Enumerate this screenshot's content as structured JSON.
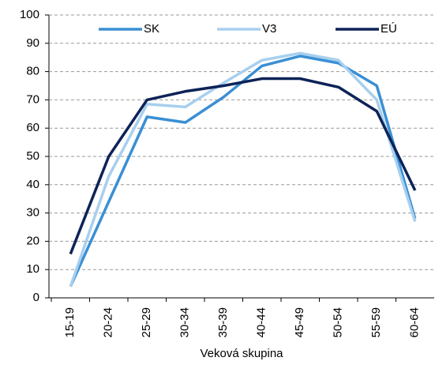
{
  "chart_data": {
    "type": "line",
    "x_label": "Veková skupina",
    "categories": [
      "15-19",
      "20-24",
      "25-29",
      "30-34",
      "35-39",
      "40-44",
      "45-49",
      "50-54",
      "55-59",
      "60-64"
    ],
    "series": [
      {
        "name": "SK",
        "color": "#3a8fd4",
        "values": [
          4,
          34,
          64,
          62,
          71,
          82,
          85.5,
          83,
          75,
          28
        ]
      },
      {
        "name": "V3",
        "color": "#a8cfee",
        "values": [
          4,
          43,
          68.5,
          67.5,
          76,
          84,
          86.5,
          84,
          70,
          27
        ]
      },
      {
        "name": "EÚ",
        "color": "#0d2357",
        "values": [
          15.5,
          50,
          70,
          73,
          75,
          77.5,
          77.5,
          74.5,
          66,
          38
        ]
      }
    ],
    "ylim": [
      0,
      100
    ],
    "yticks": [
      0,
      10,
      20,
      30,
      40,
      50,
      60,
      70,
      80,
      90,
      100
    ],
    "grid": true,
    "legend": "top"
  }
}
